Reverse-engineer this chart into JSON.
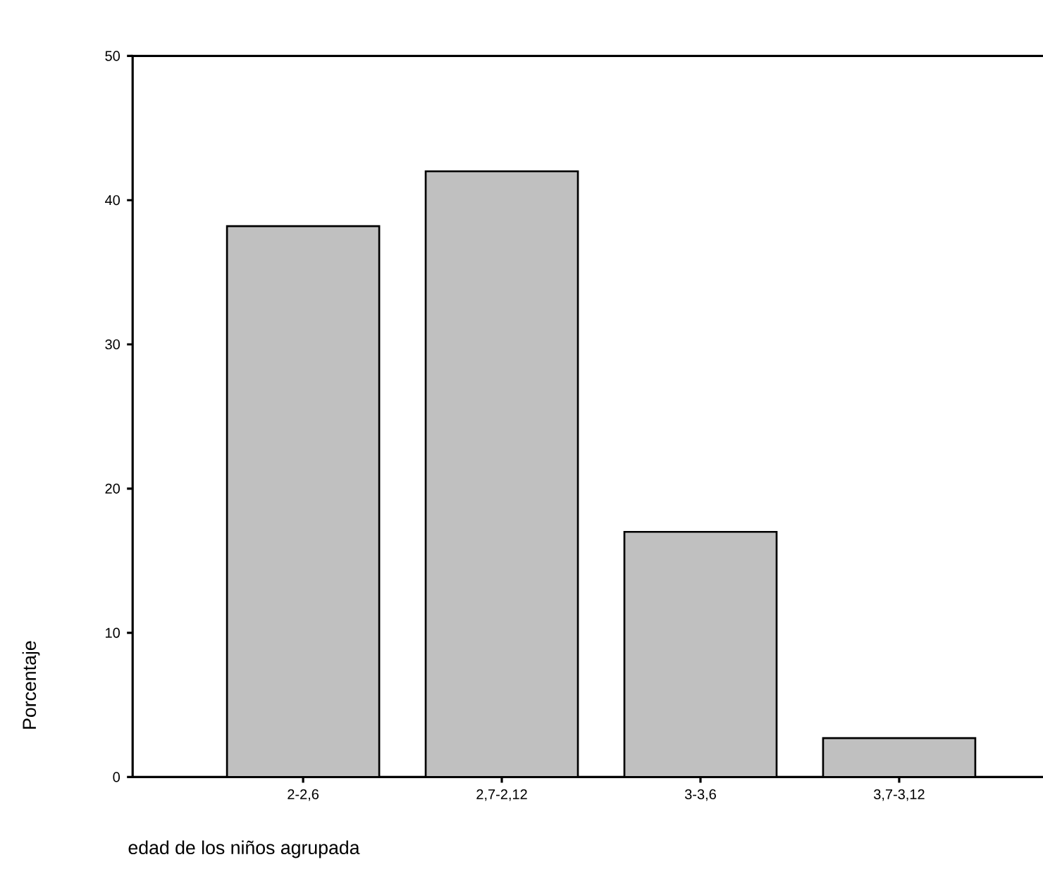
{
  "chart_data": {
    "type": "bar",
    "xlabel": "edad de los niños agrupada",
    "ylabel": "Porcentaje",
    "categories": [
      "2-2,6",
      "2,7-2,12",
      "3-3,6",
      "3,7-3,12"
    ],
    "values": [
      38.2,
      42.0,
      17.0,
      2.7
    ],
    "color": "#c0c0c0",
    "ylim": [
      0,
      50
    ],
    "yticks": [
      0,
      10,
      20,
      30,
      40,
      50
    ],
    "grid": false
  }
}
